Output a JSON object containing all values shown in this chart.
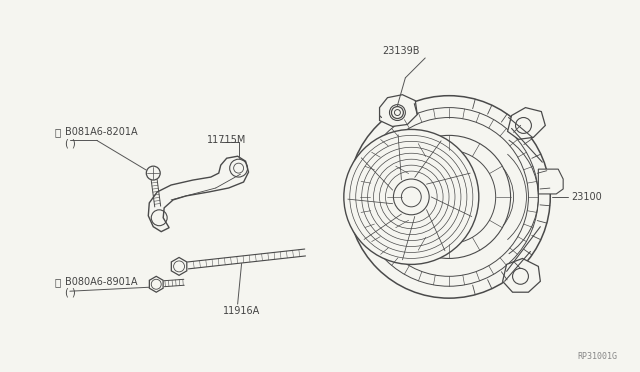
{
  "bg_color": "#f5f5f0",
  "line_color": "#4a4a4a",
  "text_color": "#333333",
  "label_color": "#444444",
  "diagram_ref": "RP31001G",
  "labels": {
    "bracket": "11715M",
    "bolt_top": "B081A6-8201A",
    "bolt_top2": "( )",
    "bolt_bottom": "B080A6-8901A",
    "bolt_bottom2": "( )",
    "stud": "11916A",
    "alternator": "23100",
    "bolt_alt": "23139B"
  },
  "figsize": [
    6.4,
    3.72
  ],
  "dpi": 100
}
